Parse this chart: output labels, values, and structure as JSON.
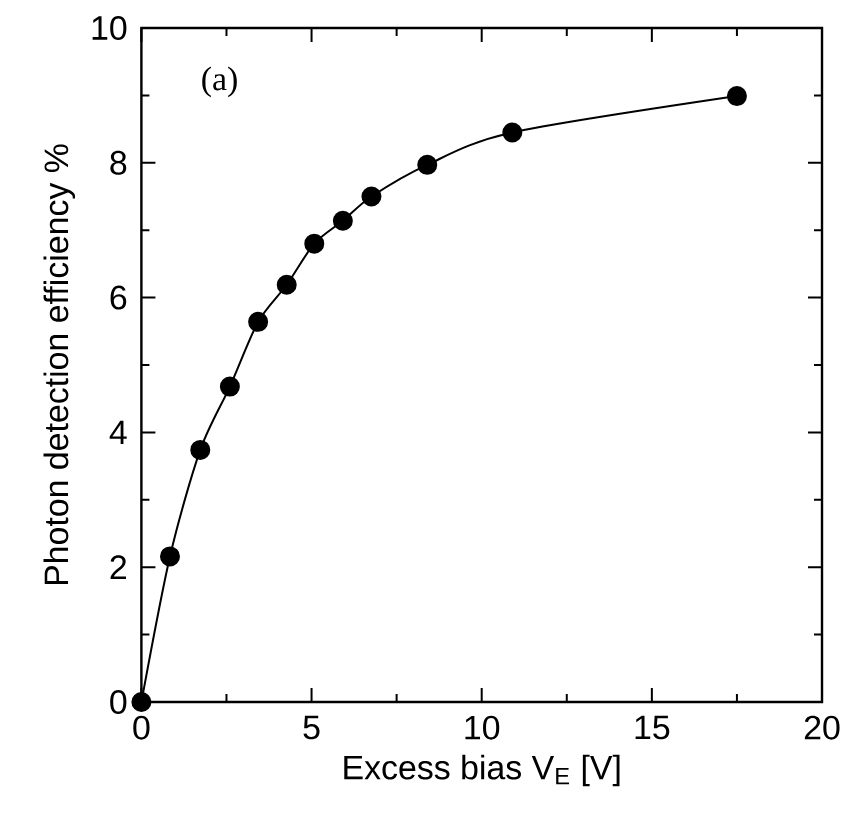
{
  "chart_data": {
    "type": "line",
    "xlabel": "Excess bias V$_{E}$ [V]",
    "ylabel": "Photon detection efficiency %",
    "annotations": [
      "(a)"
    ],
    "x": [
      0,
      0.84,
      1.73,
      2.6,
      3.43,
      4.27,
      5.08,
      5.92,
      6.76,
      8.4,
      10.9,
      17.5
    ],
    "series": [
      {
        "color": "#000000",
        "values": [
          0,
          2.16,
          3.74,
          4.68,
          5.64,
          6.19,
          6.8,
          7.14,
          7.5,
          7.97,
          8.45,
          8.99
        ]
      }
    ],
    "xlim": [
      0,
      20
    ],
    "ylim": [
      0,
      10
    ],
    "xticks": [
      0,
      5,
      10,
      15,
      20
    ],
    "yticks": [
      0,
      2,
      4,
      6,
      8,
      10
    ],
    "marker": "circle",
    "line_style": "solid"
  }
}
